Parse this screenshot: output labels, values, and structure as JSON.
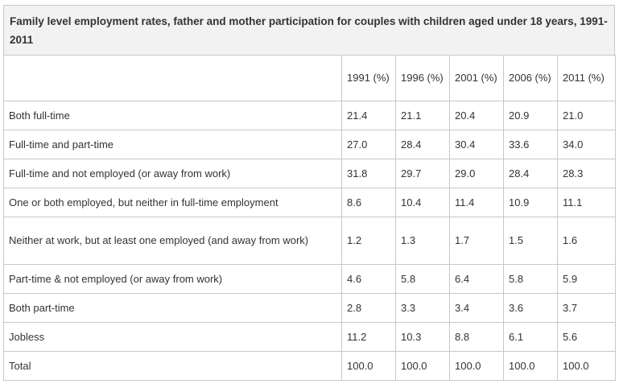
{
  "title": "Family level employment rates, father and mother participation for couples with children aged under 18 years, 1991-2011",
  "columns": [
    "",
    "1991 (%)",
    "1996 (%)",
    "2001 (%)",
    "2006 (%)",
    "2011 (%)"
  ],
  "rows": [
    {
      "label": "Both full-time",
      "values": [
        "21.4",
        "21.1",
        "20.4",
        "20.9",
        "21.0"
      ]
    },
    {
      "label": "Full-time and part-time",
      "values": [
        "27.0",
        "28.4",
        "30.4",
        "33.6",
        "34.0"
      ]
    },
    {
      "label": "Full-time and not employed (or away from work)",
      "values": [
        "31.8",
        "29.7",
        "29.0",
        "28.4",
        "28.3"
      ]
    },
    {
      "label": "One or both employed, but neither in full-time employment",
      "values": [
        "8.6",
        "10.4",
        "11.4",
        "10.9",
        "11.1"
      ]
    },
    {
      "label": "Neither at work, but at least one employed (and away from work)",
      "values": [
        "1.2",
        "1.3",
        "1.7",
        "1.5",
        "1.6"
      ]
    },
    {
      "label": "Part-time & not employed (or away from work)",
      "values": [
        "4.6",
        "5.8",
        "6.4",
        "5.8",
        "5.9"
      ]
    },
    {
      "label": "Both part-time",
      "values": [
        "2.8",
        "3.3",
        "3.4",
        "3.6",
        "3.7"
      ]
    },
    {
      "label": "Jobless",
      "values": [
        "11.2",
        "10.3",
        "8.8",
        "6.1",
        "5.6"
      ]
    },
    {
      "label": "Total",
      "values": [
        "100.0",
        "100.0",
        "100.0",
        "100.0",
        "100.0"
      ]
    }
  ]
}
